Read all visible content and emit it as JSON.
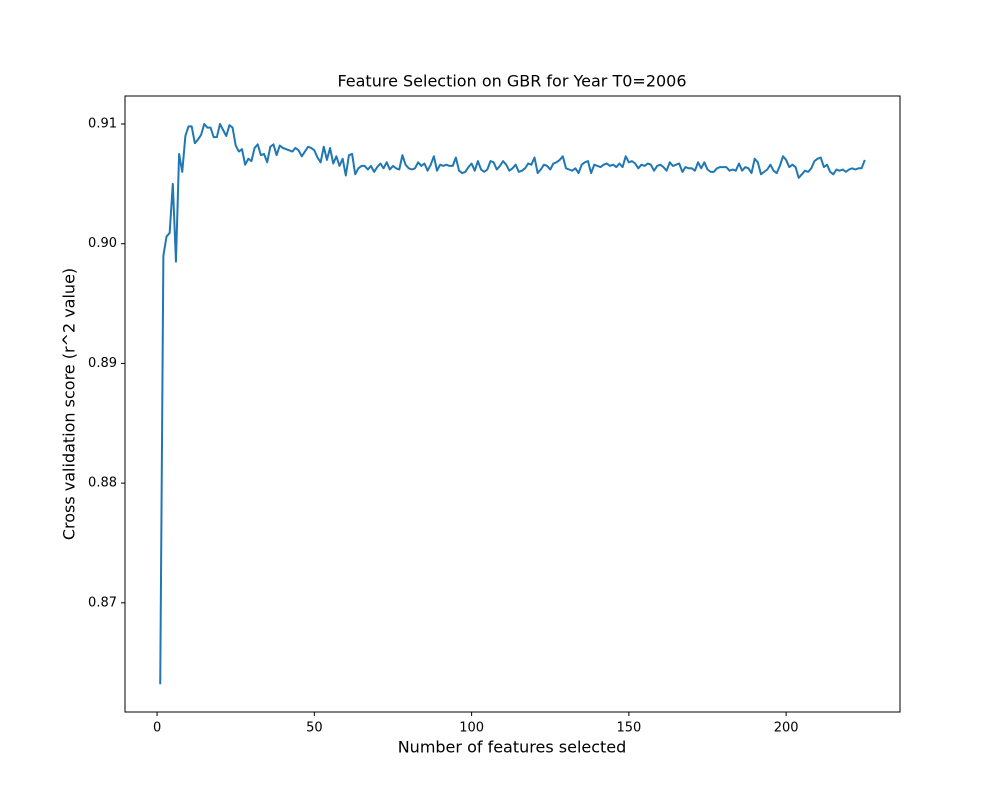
{
  "chart_data": {
    "type": "line",
    "title": "Feature Selection on GBR for Year T0=2006",
    "xlabel": "Number of features selected",
    "ylabel": "Cross validation score (r^2 value)",
    "color": "#1f77b4",
    "x": [
      1,
      2,
      3,
      4,
      5,
      6,
      7,
      8,
      9,
      10,
      11,
      12,
      13,
      14,
      15,
      16,
      17,
      18,
      19,
      20,
      21,
      22,
      23,
      24,
      25,
      26,
      27,
      28,
      29,
      30,
      31,
      32,
      33,
      34,
      35,
      36,
      37,
      38,
      39,
      40,
      41,
      42,
      43,
      44,
      45,
      46,
      47,
      48,
      49,
      50,
      51,
      52,
      53,
      54,
      55,
      56,
      57,
      58,
      59,
      60,
      61,
      62,
      63,
      64,
      65,
      66,
      67,
      68,
      69,
      70,
      71,
      72,
      73,
      74,
      75,
      76,
      77,
      78,
      79,
      80,
      81,
      82,
      83,
      84,
      85,
      86,
      87,
      88,
      89,
      90,
      91,
      92,
      93,
      94,
      95,
      96,
      97,
      98,
      99,
      100,
      101,
      102,
      103,
      104,
      105,
      106,
      107,
      108,
      109,
      110,
      111,
      112,
      113,
      114,
      115,
      116,
      117,
      118,
      119,
      120,
      121,
      122,
      123,
      124,
      125,
      126,
      127,
      128,
      129,
      130,
      131,
      132,
      133,
      134,
      135,
      136,
      137,
      138,
      139,
      140,
      141,
      142,
      143,
      144,
      145,
      146,
      147,
      148,
      149,
      150,
      151,
      152,
      153,
      154,
      155,
      156,
      157,
      158,
      159,
      160,
      161,
      162,
      163,
      164,
      165,
      166,
      167,
      168,
      169,
      170,
      171,
      172,
      173,
      174,
      175,
      176,
      177,
      178,
      179,
      180,
      181,
      182,
      183,
      184,
      185,
      186,
      187,
      188,
      189,
      190,
      191,
      192,
      193,
      194,
      195,
      196,
      197,
      198,
      199,
      200,
      201,
      202,
      203,
      204,
      205,
      206,
      207,
      208,
      209,
      210,
      211,
      212,
      213,
      214,
      215,
      216,
      217,
      218,
      219,
      220,
      221,
      222,
      223,
      224,
      225
    ],
    "values": [
      0.8632,
      0.899,
      0.9006,
      0.9009,
      0.905,
      0.8985,
      0.9075,
      0.906,
      0.909,
      0.9098,
      0.9098,
      0.9084,
      0.9087,
      0.9091,
      0.91,
      0.9097,
      0.9097,
      0.9089,
      0.9089,
      0.91,
      0.9095,
      0.909,
      0.9099,
      0.9097,
      0.9082,
      0.9077,
      0.9079,
      0.9066,
      0.9071,
      0.9069,
      0.908,
      0.9083,
      0.9074,
      0.9075,
      0.9068,
      0.9081,
      0.9083,
      0.9074,
      0.9082,
      0.908,
      0.9079,
      0.9078,
      0.9077,
      0.908,
      0.9078,
      0.9073,
      0.9077,
      0.9081,
      0.908,
      0.9078,
      0.9072,
      0.9068,
      0.9081,
      0.907,
      0.908,
      0.9067,
      0.9073,
      0.9065,
      0.9071,
      0.9057,
      0.9074,
      0.9075,
      0.9058,
      0.9063,
      0.9065,
      0.9065,
      0.9062,
      0.9065,
      0.906,
      0.9064,
      0.9067,
      0.9063,
      0.9068,
      0.9062,
      0.9065,
      0.9063,
      0.9062,
      0.9074,
      0.9066,
      0.9063,
      0.9062,
      0.9063,
      0.9068,
      0.9065,
      0.9067,
      0.9061,
      0.9066,
      0.9073,
      0.9061,
      0.9066,
      0.9065,
      0.9066,
      0.9065,
      0.9065,
      0.9072,
      0.9061,
      0.9059,
      0.906,
      0.9064,
      0.9067,
      0.9061,
      0.9069,
      0.9062,
      0.906,
      0.9062,
      0.9069,
      0.9068,
      0.9062,
      0.9065,
      0.9069,
      0.9066,
      0.9061,
      0.9063,
      0.9066,
      0.906,
      0.9061,
      0.9063,
      0.9067,
      0.9066,
      0.9072,
      0.9059,
      0.9062,
      0.9066,
      0.9065,
      0.9062,
      0.9067,
      0.9068,
      0.907,
      0.9073,
      0.9063,
      0.9062,
      0.9061,
      0.9063,
      0.9059,
      0.9066,
      0.9068,
      0.9069,
      0.9059,
      0.9066,
      0.9065,
      0.9064,
      0.9066,
      0.9067,
      0.9065,
      0.9066,
      0.9064,
      0.9067,
      0.9064,
      0.9073,
      0.9068,
      0.9069,
      0.9067,
      0.9063,
      0.9066,
      0.9065,
      0.9067,
      0.9066,
      0.9061,
      0.9065,
      0.9066,
      0.9064,
      0.9061,
      0.9068,
      0.9065,
      0.9066,
      0.9067,
      0.906,
      0.9064,
      0.9063,
      0.9063,
      0.9061,
      0.9068,
      0.9063,
      0.9068,
      0.9062,
      0.906,
      0.906,
      0.9063,
      0.9064,
      0.9064,
      0.9064,
      0.9061,
      0.9062,
      0.9061,
      0.9067,
      0.9061,
      0.9064,
      0.9063,
      0.9059,
      0.9071,
      0.9068,
      0.9058,
      0.906,
      0.9062,
      0.9066,
      0.9061,
      0.9059,
      0.9065,
      0.9073,
      0.907,
      0.9064,
      0.9066,
      0.9064,
      0.9055,
      0.9058,
      0.9061,
      0.906,
      0.9063,
      0.9069,
      0.9071,
      0.9072,
      0.9064,
      0.9066,
      0.906,
      0.9058,
      0.9062,
      0.9061,
      0.9062,
      0.906,
      0.9062,
      0.9063,
      0.9062,
      0.9063,
      0.9063,
      0.907
    ],
    "xlim": [
      -10.2,
      236.2
    ],
    "ylim": [
      0.86088,
      0.91234
    ],
    "xticks": [
      0,
      50,
      100,
      150,
      200
    ],
    "yticks": [
      0.87,
      0.88,
      0.89,
      {
        "value": 0.9,
        "label": "0.90"
      },
      0.91
    ]
  }
}
